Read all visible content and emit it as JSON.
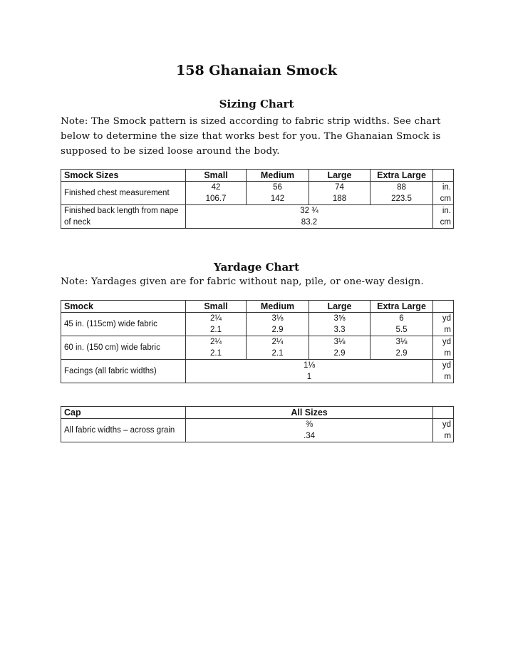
{
  "title": "158 Ghanaian Smock",
  "sizing": {
    "heading": "Sizing Chart",
    "note": "Note: The Smock pattern is sized according to fabric strip widths.  See chart below to determine the size that works best for you.  The Ghanaian Smock is supposed to be sized loose around the body.",
    "headers": [
      "Smock Sizes",
      "Small",
      "Medium",
      "Large",
      "Extra Large"
    ],
    "rows": [
      {
        "label": "Finished chest measurement",
        "values": [
          [
            "42",
            "106.7"
          ],
          [
            "56",
            "142"
          ],
          [
            "74",
            "188"
          ],
          [
            "88",
            "223.5"
          ]
        ],
        "units": [
          "in.",
          "cm"
        ]
      },
      {
        "label": "Finished back length from nape of neck",
        "all": [
          "32 ¾",
          "83.2"
        ],
        "units": [
          "in.",
          "cm"
        ]
      }
    ]
  },
  "yardage": {
    "heading": "Yardage Chart",
    "note": "Note: Yardages given are for fabric without nap, pile, or one-way design.",
    "headers": [
      "Smock",
      "Small",
      "Medium",
      "Large",
      "Extra Large"
    ],
    "rows": [
      {
        "label": "45 in. (115cm) wide fabric",
        "values": [
          [
            "2¼",
            "2.1"
          ],
          [
            "3⅛",
            "2.9"
          ],
          [
            "3⅝",
            "3.3"
          ],
          [
            "6",
            "5.5"
          ]
        ],
        "units": [
          "yd",
          "m"
        ]
      },
      {
        "label": "60 in. (150 cm) wide fabric",
        "values": [
          [
            "2¼",
            "2.1"
          ],
          [
            "2¼",
            "2.1"
          ],
          [
            "3⅛",
            "2.9"
          ],
          [
            "3⅛",
            "2.9"
          ]
        ],
        "units": [
          "yd",
          "m"
        ]
      },
      {
        "label": "Facings (all fabric widths)",
        "all": [
          "1⅛",
          "1"
        ],
        "units": [
          "yd",
          "m"
        ]
      }
    ]
  },
  "cap": {
    "headers": [
      "Cap",
      "All Sizes"
    ],
    "rows": [
      {
        "label": "All fabric widths – across grain",
        "all": [
          "⅜",
          ".34"
        ],
        "units": [
          "yd",
          "m"
        ]
      }
    ]
  }
}
